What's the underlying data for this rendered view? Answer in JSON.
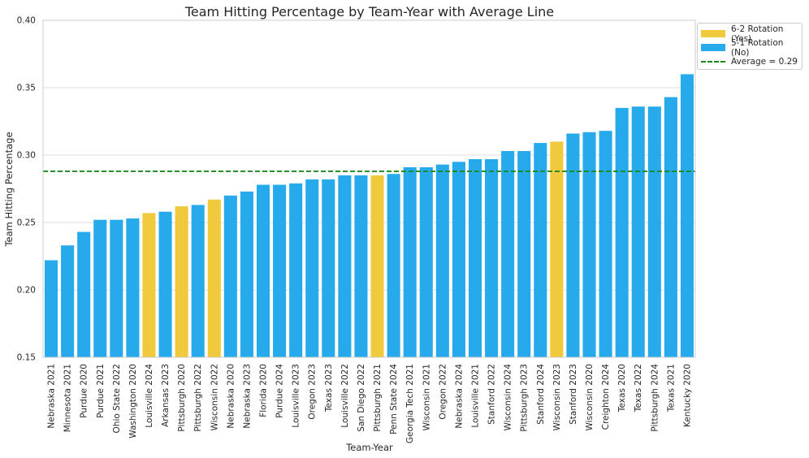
{
  "chart_data": {
    "type": "bar",
    "title": "Team Hitting Percentage by Team-Year with Average Line",
    "xlabel": "Team-Year",
    "ylabel": "Team Hitting Percentage",
    "ylim": [
      0.15,
      0.4
    ],
    "yticks": [
      "0.15",
      "0.20",
      "0.25",
      "0.30",
      "0.35",
      "0.40"
    ],
    "grid": true,
    "legend_position": "outside-top-right",
    "colors": {
      "yes": "#f0c93c",
      "no": "#26aaec",
      "average": "#1a8a1a"
    },
    "average": 0.288,
    "categories": [
      "Nebraska 2021",
      "Minnesota 2021",
      "Purdue 2020",
      "Purdue 2021",
      "Ohio State 2022",
      "Washington 2020",
      "Louisville 2024",
      "Arkansas 2023",
      "Pittsburgh 2020",
      "Pittsburgh 2022",
      "Wisconsin 2022",
      "Nebraska 2020",
      "Nebraska 2023",
      "Florida 2020",
      "Purdue 2024",
      "Louisville 2023",
      "Oregon 2023",
      "Texas 2023",
      "Louisville 2022",
      "San Diego 2022",
      "Pittsburgh 2021",
      "Penn State 2024",
      "Georgia Tech 2021",
      "Wisconsin 2021",
      "Oregon 2022",
      "Nebraska 2024",
      "Louisville 2021",
      "Stanford 2022",
      "Wisconsin 2024",
      "Pittsburgh 2023",
      "Stanford 2024",
      "Wisconsin 2023",
      "Stanford 2023",
      "Wisconsin 2020",
      "Creighton 2024",
      "Texas 2020",
      "Texas 2022",
      "Pittsburgh 2024",
      "Texas 2021",
      "Kentucky 2020"
    ],
    "values": [
      0.222,
      0.233,
      0.243,
      0.252,
      0.252,
      0.253,
      0.257,
      0.258,
      0.262,
      0.263,
      0.267,
      0.27,
      0.273,
      0.278,
      0.278,
      0.279,
      0.282,
      0.282,
      0.285,
      0.285,
      0.285,
      0.286,
      0.291,
      0.291,
      0.293,
      0.295,
      0.297,
      0.297,
      0.303,
      0.303,
      0.309,
      0.31,
      0.316,
      0.317,
      0.318,
      0.335,
      0.336,
      0.336,
      0.343,
      0.36
    ],
    "rotation_6_2": [
      false,
      false,
      false,
      false,
      false,
      false,
      true,
      false,
      true,
      false,
      true,
      false,
      false,
      false,
      false,
      false,
      false,
      false,
      false,
      false,
      true,
      false,
      false,
      false,
      false,
      false,
      false,
      false,
      false,
      false,
      false,
      true,
      false,
      false,
      false,
      false,
      false,
      false,
      false,
      false
    ]
  },
  "legend": {
    "items": [
      {
        "label": "6-2 Rotation (Yes)"
      },
      {
        "label": "5-1 Rotation (No)"
      },
      {
        "label": "Average = 0.29"
      }
    ]
  }
}
